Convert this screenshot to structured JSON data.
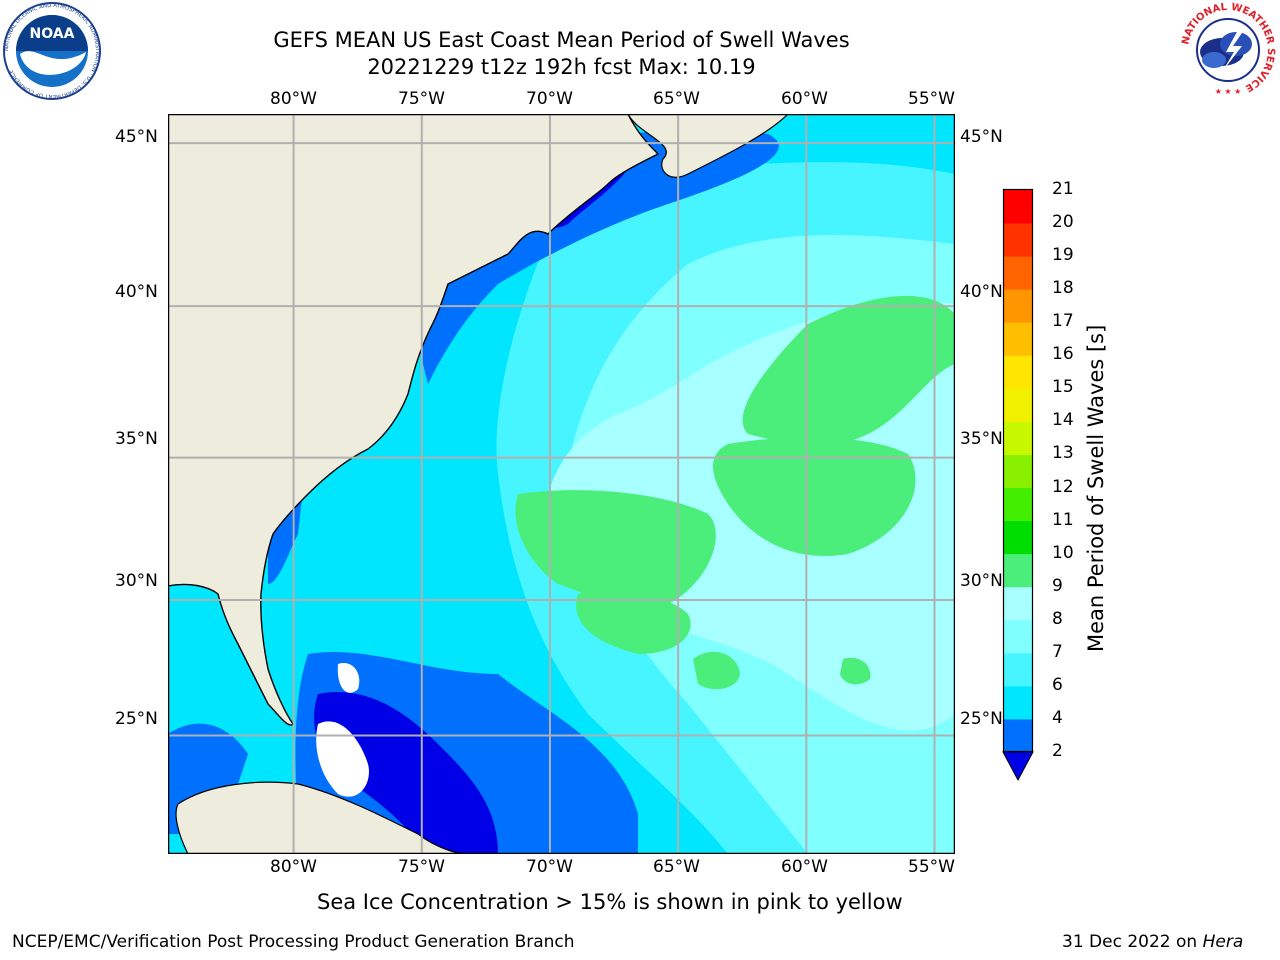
{
  "header": {
    "title": "GEFS MEAN US East Coast Mean Period of Swell Waves",
    "subtitle": "20221229 t12z 192h fcst   Max: 10.19"
  },
  "map": {
    "longitude_labels": [
      "80°W",
      "75°W",
      "70°W",
      "65°W",
      "60°W",
      "55°W"
    ],
    "latitude_labels": [
      "45°N",
      "40°N",
      "35°N",
      "30°N",
      "25°N"
    ],
    "lon_range": [
      "-85",
      "-54"
    ],
    "lat_range": [
      "20.5",
      "46"
    ],
    "land_color": "#EEECDC",
    "grid_color": "#B0B0B0"
  },
  "colorbar": {
    "title": "Mean Period of Swell Waves [s]",
    "levels": [
      "2",
      "4",
      "6",
      "7",
      "8",
      "9",
      "10",
      "11",
      "12",
      "13",
      "14",
      "15",
      "16",
      "17",
      "18",
      "19",
      "20",
      "21"
    ],
    "colors": [
      "#0000FF",
      "#0070FF",
      "#00E6FF",
      "#46F5FF",
      "#80FFFF",
      "#A8FFFF",
      "#4CEE7B",
      "#00DD00",
      "#44EE00",
      "#88F000",
      "#C8F800",
      "#F0F000",
      "#FFE600",
      "#FFBE00",
      "#FF9600",
      "#FF6400",
      "#FF3200",
      "#FF0000"
    ],
    "extend_color": "#0000E6"
  },
  "caption": "Sea Ice Concentration > 15% is shown in pink to yellow",
  "footer": {
    "left": "NCEP/EMC/Verification Post Processing Product Generation Branch",
    "right_date": "31 Dec 2022 on ",
    "right_host": "Hera"
  },
  "logos": {
    "noaa": "NOAA",
    "noaa_ring": "NATIONAL OCEANIC AND ATMOSPHERIC ADMINISTRATION · U.S. DEPARTMENT OF COMMERCE",
    "nws_ring": "NATIONAL WEATHER SERVICE"
  }
}
